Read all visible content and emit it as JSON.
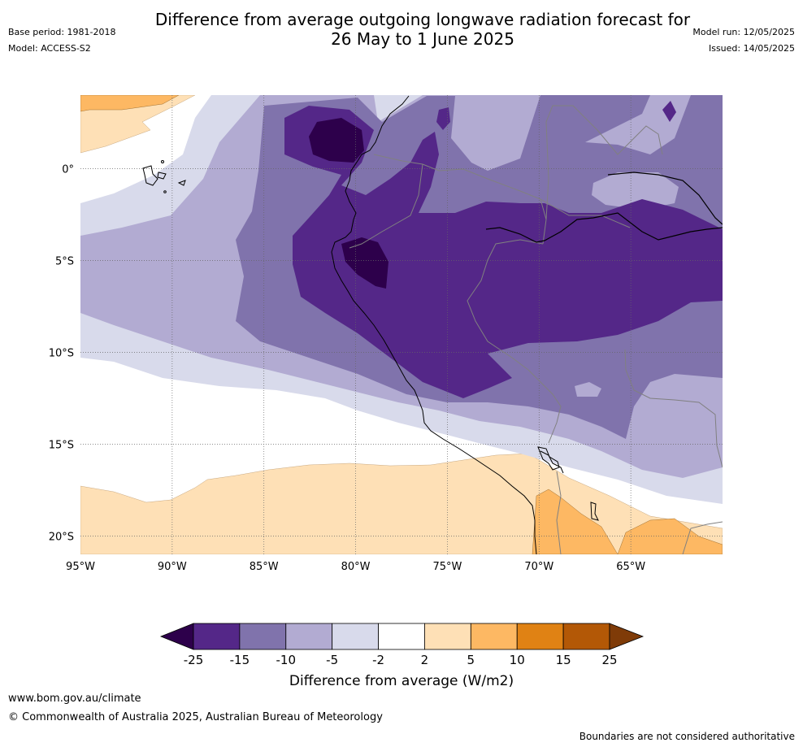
{
  "title": {
    "line1": "Difference from average outgoing longwave radiation forecast for",
    "line2": "26 May to 1 June 2025"
  },
  "meta_left": {
    "base_period": "Base period: 1981-2018",
    "model": "Model: ACCESS-S2"
  },
  "meta_right": {
    "model_run": "Model run: 12/05/2025",
    "issued": "Issued: 14/05/2025"
  },
  "map": {
    "region": {
      "lon_min": -95,
      "lon_max": -60,
      "lat_min": -21,
      "lat_max": 4
    },
    "lon_ticks": [
      "95°W",
      "90°W",
      "85°W",
      "80°W",
      "75°W",
      "70°W",
      "65°W"
    ],
    "lat_ticks": [
      "0°",
      "5°S",
      "10°S",
      "15°S",
      "20°S"
    ],
    "gridlines": true
  },
  "colorbar": {
    "ticks": [
      "-25",
      "-15",
      "-10",
      "-5",
      "-2",
      "2",
      "5",
      "10",
      "15",
      "25"
    ],
    "colors": [
      "#2d004b",
      "#542788",
      "#8073ac",
      "#b2abd2",
      "#d8daeb",
      "#ffffff",
      "#fee0b6",
      "#fdb863",
      "#e08214",
      "#b35806",
      "#7f3b08"
    ],
    "label": "Difference from average (W/m2)"
  },
  "footer": {
    "url": "www.bom.gov.au/climate",
    "copyright": "© Commonwealth of Australia 2025, Australian Bureau of Meteorology",
    "disclaimer": "Boundaries are not considered authoritative"
  }
}
